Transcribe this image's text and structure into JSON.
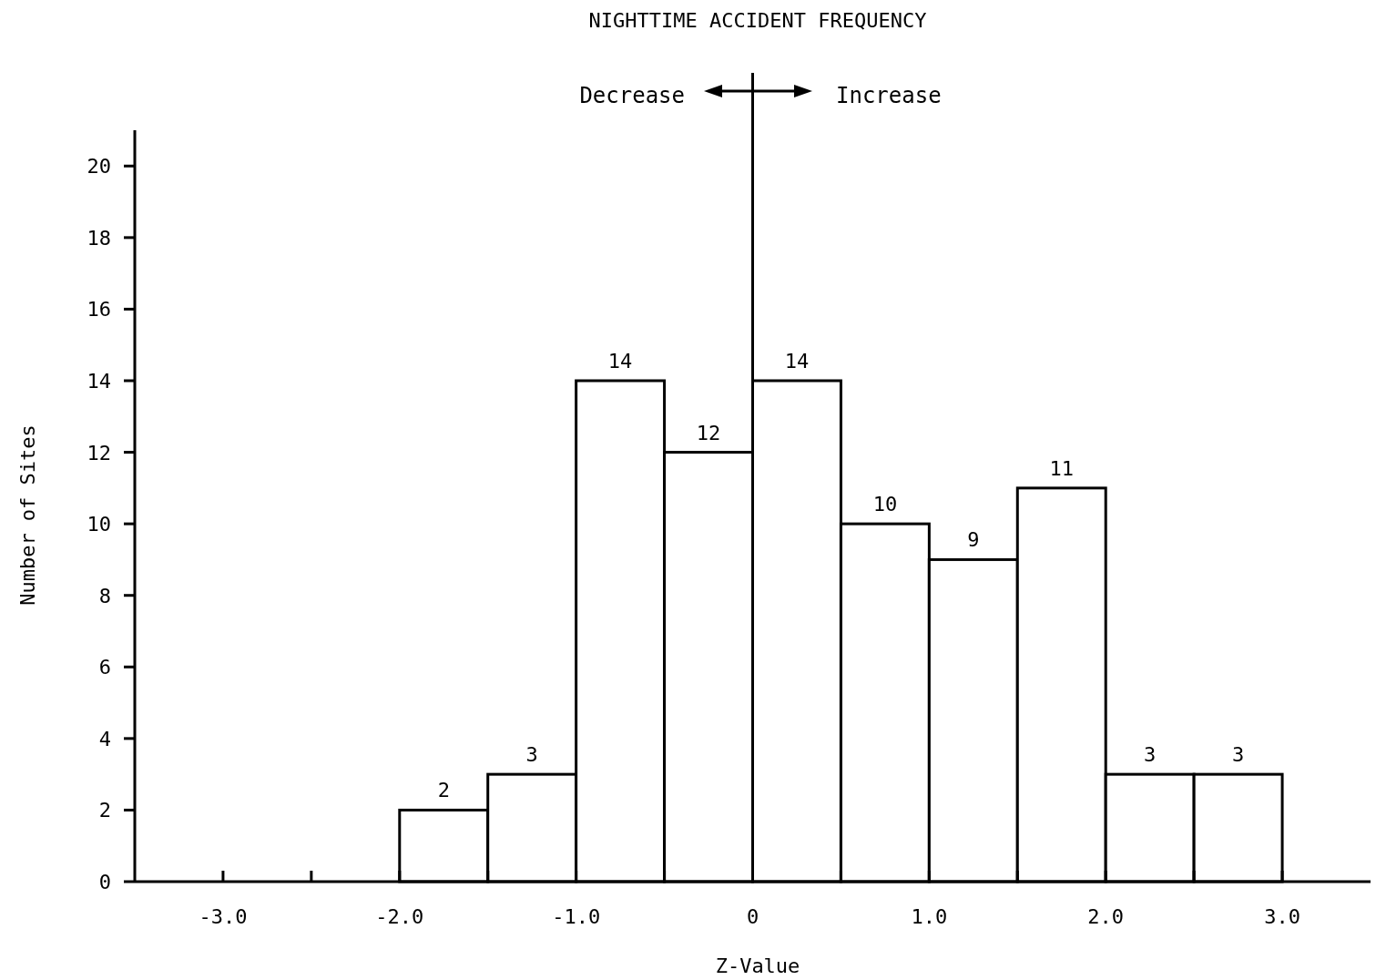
{
  "chart_data": {
    "type": "histogram",
    "title": "NIGHTTIME ACCIDENT FREQUENCY",
    "xlabel": "Z-Value",
    "ylabel": "Number of Sites",
    "bins": [
      -2.0,
      -1.5,
      -1.0,
      -0.5,
      0,
      0.5,
      1.0,
      1.5,
      2.0,
      2.5,
      3.0
    ],
    "values": [
      2,
      3,
      14,
      12,
      14,
      10,
      9,
      11,
      3,
      3
    ],
    "color": "#ffffff",
    "data_labels": true,
    "xlim": [
      -3.5,
      3.5
    ],
    "xticks": [
      {
        "value": -3.0,
        "label": "-3.0"
      },
      {
        "value": -2.5,
        "label": null
      },
      {
        "value": -2.0,
        "label": "-2.0"
      },
      {
        "value": -1.5,
        "label": null
      },
      {
        "value": -1.0,
        "label": "-1.0"
      },
      {
        "value": -0.5,
        "label": null
      },
      0,
      {
        "value": 0.5,
        "label": null
      },
      {
        "value": 1.0,
        "label": "1.0"
      },
      {
        "value": 1.5,
        "label": null
      },
      {
        "value": 2.0,
        "label": "2.0"
      },
      {
        "value": 2.5,
        "label": null
      },
      {
        "value": 3.0,
        "label": "3.0"
      }
    ],
    "ylim": [
      0,
      21
    ],
    "yticks": [
      0,
      2,
      4,
      6,
      8,
      10,
      12,
      14,
      16,
      18,
      20
    ],
    "grid": false,
    "ref_lines": [
      {
        "axis": "x",
        "value": 0,
        "label": null
      }
    ],
    "annotations": [
      "Decrease",
      "Increase"
    ]
  }
}
